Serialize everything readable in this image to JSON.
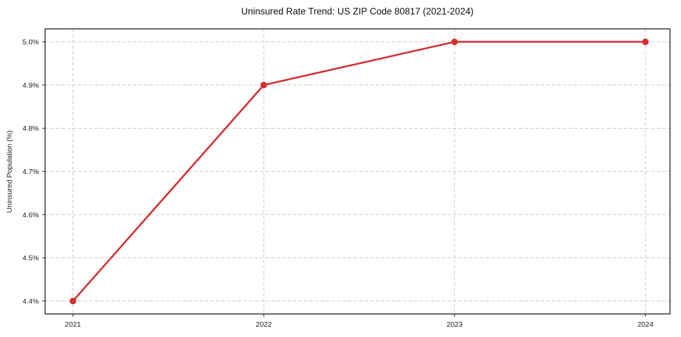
{
  "chart_data": {
    "type": "line",
    "title": "Uninsured Rate Trend: US ZIP Code 80817 (2021-2024)",
    "xlabel": "",
    "ylabel": "Uninsured Population (%)",
    "x": [
      2021,
      2022,
      2023,
      2024
    ],
    "values": [
      4.4,
      4.9,
      5.0,
      5.0
    ],
    "x_tick_labels": [
      "2021",
      "2022",
      "2023",
      "2024"
    ],
    "y_ticks": [
      4.4,
      4.5,
      4.6,
      4.7,
      4.8,
      4.9,
      5.0
    ],
    "y_tick_labels": [
      "4.4%",
      "4.5%",
      "4.6%",
      "4.7%",
      "4.8%",
      "4.9%",
      "5.0%"
    ],
    "xlim": [
      2020.854,
      2024.129
    ],
    "ylim": [
      4.37,
      5.03
    ],
    "grid": true,
    "legend": "none",
    "marker": "circle",
    "line_color": "#d32f2f",
    "grid_color": "#c9c9c9",
    "axis_color": "#1a1a1a",
    "background": "#ffffff"
  }
}
